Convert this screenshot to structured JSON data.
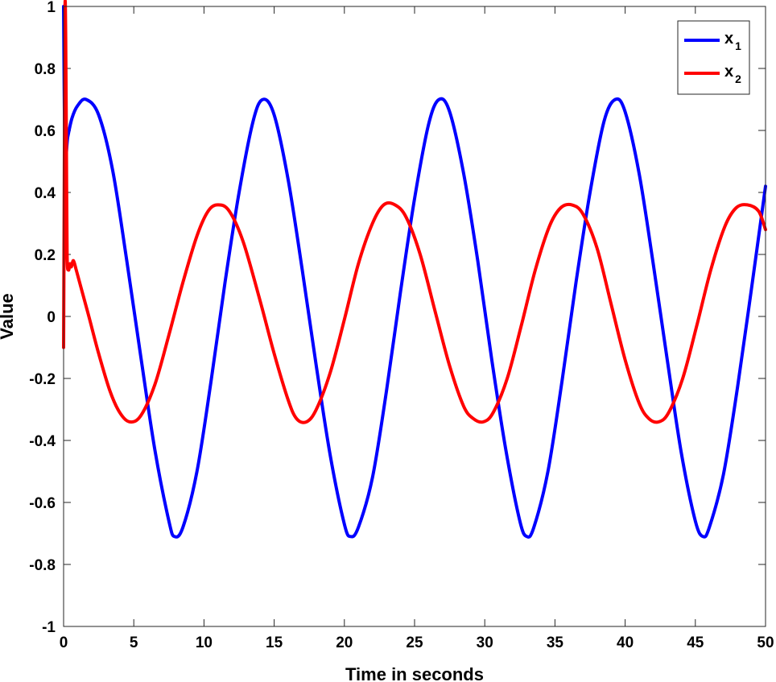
{
  "chart_data": {
    "type": "line",
    "title": "",
    "xlabel": "Time in seconds",
    "ylabel": "Value",
    "xlim": [
      0,
      50
    ],
    "ylim": [
      -1,
      1
    ],
    "xticks": [
      0,
      5,
      10,
      15,
      20,
      25,
      30,
      35,
      40,
      45,
      50
    ],
    "yticks": [
      -1,
      -0.8,
      -0.6,
      -0.4,
      -0.2,
      0,
      0.2,
      0.4,
      0.6,
      0.8,
      1
    ],
    "grid": false,
    "legend_position": "top-right",
    "series": [
      {
        "name": "x",
        "name_subscript": "1",
        "color": "#0000ff",
        "x": [
          0,
          0.1,
          0.3,
          0.6,
          1.0,
          1.6,
          2.5,
          3.5,
          4.5,
          5.5,
          6.5,
          7.5,
          7.9,
          8.5,
          9.5,
          10.5,
          11.5,
          12.5,
          13.5,
          14.2,
          15,
          16,
          17,
          18,
          19,
          20,
          20.45,
          21,
          22,
          23,
          24,
          25,
          26,
          26.75,
          27.5,
          28.5,
          29.5,
          30.5,
          31.5,
          32.5,
          33.0,
          33.5,
          34.5,
          35.5,
          36.5,
          37.5,
          38.5,
          39.3,
          40,
          41,
          42,
          43,
          44,
          45,
          45.55,
          46,
          47,
          48,
          49,
          50
        ],
        "y": [
          1.0,
          0.53,
          0.58,
          0.64,
          0.68,
          0.7,
          0.65,
          0.47,
          0.18,
          -0.13,
          -0.43,
          -0.66,
          -0.71,
          -0.68,
          -0.5,
          -0.21,
          0.11,
          0.4,
          0.63,
          0.7,
          0.65,
          0.44,
          0.15,
          -0.16,
          -0.45,
          -0.67,
          -0.71,
          -0.68,
          -0.52,
          -0.24,
          0.08,
          0.38,
          0.62,
          0.7,
          0.66,
          0.46,
          0.18,
          -0.14,
          -0.43,
          -0.66,
          -0.71,
          -0.68,
          -0.5,
          -0.21,
          0.11,
          0.4,
          0.63,
          0.7,
          0.66,
          0.46,
          0.17,
          -0.14,
          -0.44,
          -0.66,
          -0.71,
          -0.68,
          -0.51,
          -0.23,
          0.09,
          0.42
        ]
      },
      {
        "name": "x",
        "name_subscript": "2",
        "color": "#ff0000",
        "x": [
          0,
          0.05,
          0.1,
          0.15,
          0.2,
          0.25,
          0.35,
          0.45,
          0.55,
          0.7,
          0.9,
          1.2,
          1.8,
          2.5,
          3.3,
          4.0,
          4.7,
          5.5,
          6.5,
          7.5,
          8.5,
          9.5,
          10.3,
          11.0,
          11.8,
          12.8,
          14,
          15,
          16,
          16.6,
          17.3,
          18,
          19,
          20,
          21,
          22,
          22.8,
          23.6,
          24.4,
          25.4,
          26.5,
          27.5,
          28.5,
          29.2,
          29.9,
          30.6,
          31.6,
          32.6,
          33.6,
          34.6,
          35.4,
          36.2,
          37.0,
          38.0,
          39,
          40,
          41,
          41.7,
          42.4,
          43.1,
          44.1,
          45.1,
          46.1,
          47.1,
          47.9,
          48.7,
          49.5,
          50
        ],
        "y": [
          -0.1,
          0.45,
          0.99,
          0.9,
          0.55,
          0.2,
          0.15,
          0.17,
          0.16,
          0.18,
          0.15,
          0.1,
          0.0,
          -0.12,
          -0.24,
          -0.31,
          -0.34,
          -0.32,
          -0.22,
          -0.06,
          0.11,
          0.26,
          0.34,
          0.36,
          0.34,
          0.24,
          0.05,
          -0.12,
          -0.27,
          -0.33,
          -0.34,
          -0.3,
          -0.18,
          -0.01,
          0.17,
          0.3,
          0.36,
          0.36,
          0.32,
          0.2,
          0.01,
          -0.16,
          -0.29,
          -0.33,
          -0.34,
          -0.31,
          -0.2,
          -0.03,
          0.15,
          0.29,
          0.35,
          0.36,
          0.33,
          0.22,
          0.04,
          -0.14,
          -0.28,
          -0.33,
          -0.34,
          -0.31,
          -0.2,
          -0.03,
          0.15,
          0.29,
          0.35,
          0.36,
          0.34,
          0.28
        ]
      }
    ]
  }
}
